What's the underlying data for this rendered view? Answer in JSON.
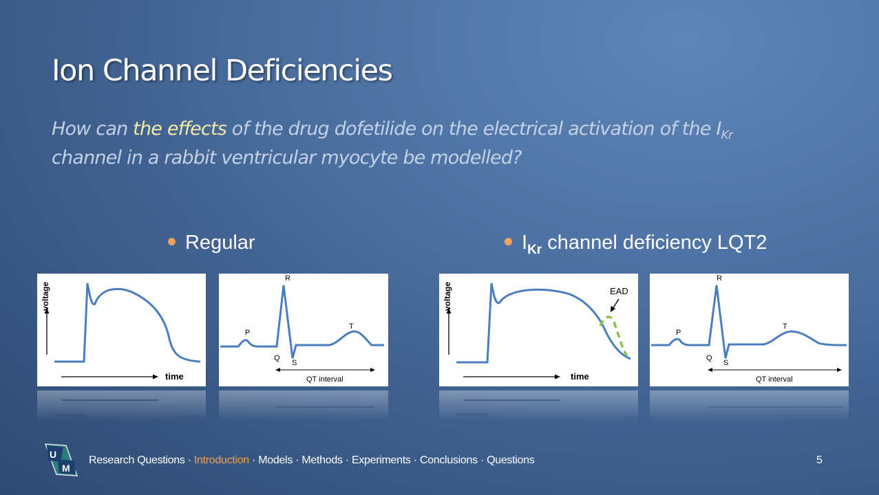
{
  "slide": {
    "title": "Ion Channel Deficiencies",
    "question": {
      "part1": "How can ",
      "highlight": "the effects",
      "part2": " of the drug dofetilide on the electrical activation of the I",
      "sub": "Kr",
      "part3": " channel in a rabbit ventricular myocyte be modelled?"
    },
    "bullets": [
      {
        "text": "Regular"
      },
      {
        "prefix": "I",
        "sub": "Kr",
        "text": " channel deficiency LQT2"
      }
    ],
    "figures": {
      "ap_regular": {
        "ylabel": "voltage",
        "xlabel": "time"
      },
      "ecg_regular": {
        "R": "R",
        "P": "P",
        "Q": "Q",
        "S": "S",
        "T": "T",
        "interval": "QT interval"
      },
      "ap_lqt2": {
        "ylabel": "voltage",
        "xlabel": "time",
        "annotation": "EAD"
      },
      "ecg_lqt2": {
        "R": "R",
        "P": "P",
        "Q": "Q",
        "S": "S",
        "T": "T",
        "interval": "QT interval"
      }
    },
    "colors": {
      "trace": "#4a7cc0",
      "ead": "#8dc050",
      "bullet": "#f5a35b",
      "active_nav": "#f0a050"
    },
    "logo": {
      "letters": [
        "U",
        "M"
      ]
    },
    "footer": {
      "nav": [
        "Research Questions",
        "Introduction",
        "Models",
        "Methods",
        "Experiments",
        "Conclusions",
        "Questions"
      ],
      "separator": " · ",
      "active": "Introduction",
      "page_number": "5"
    }
  }
}
